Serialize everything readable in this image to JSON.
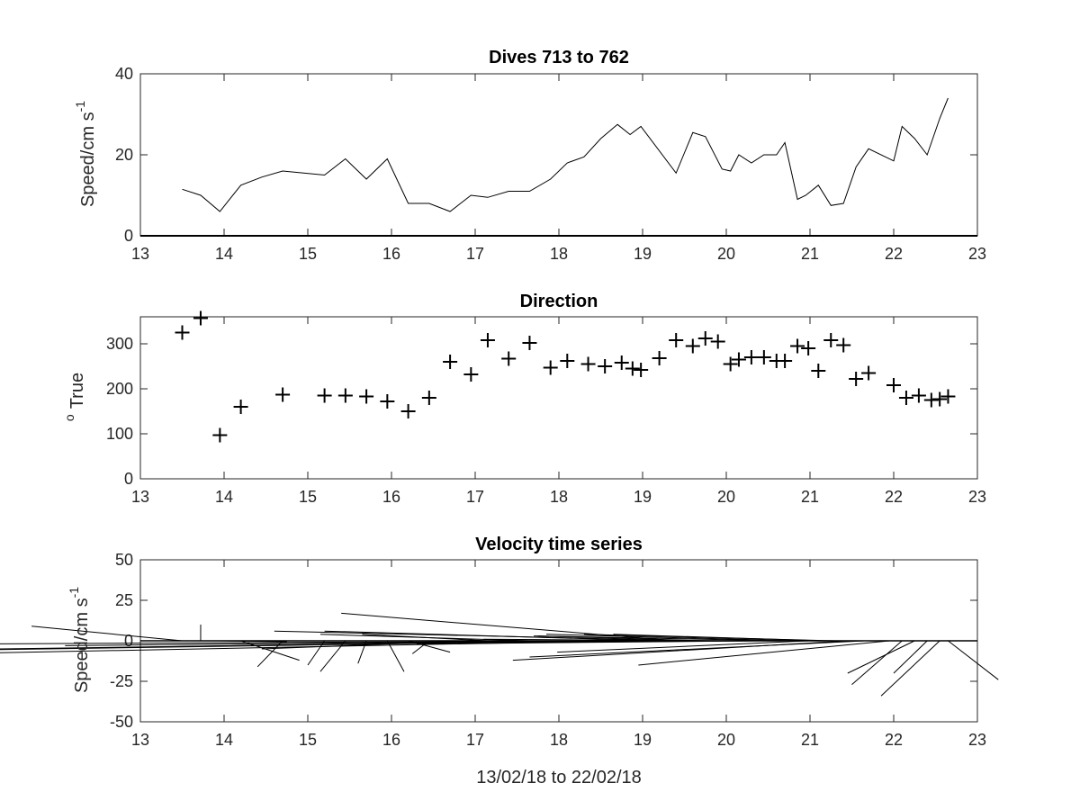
{
  "figure": {
    "xlabel": "13/02/18 to 22/02/18"
  },
  "chart_data": [
    {
      "type": "line",
      "title": "Dives 713 to 762",
      "ylabel": "Speed/cm s",
      "ylabel_superscript": "-1",
      "xlim": [
        13,
        23
      ],
      "ylim": [
        0,
        40
      ],
      "xticks": [
        13,
        14,
        15,
        16,
        17,
        18,
        19,
        20,
        21,
        22,
        23
      ],
      "yticks": [
        0,
        20,
        40
      ],
      "grid": false,
      "series": [
        {
          "x": [
            13.5,
            13.72,
            13.95,
            14.2,
            14.45,
            14.7,
            14.95,
            15.2,
            15.45,
            15.7,
            15.95,
            16.2,
            16.45,
            16.7,
            16.95,
            17.15,
            17.4,
            17.65,
            17.9,
            18.1,
            18.3,
            18.5,
            18.7,
            18.85,
            18.98,
            19.4,
            19.6,
            19.75,
            19.95,
            20.05,
            20.15,
            20.3,
            20.45,
            20.6,
            20.7,
            20.85,
            20.95,
            21.1,
            21.25,
            21.4,
            21.55,
            21.7,
            22.0,
            22.1,
            22.25,
            22.4,
            22.55,
            22.65
          ],
          "y": [
            11.5,
            10,
            6,
            12.5,
            14.5,
            16,
            15.5,
            15,
            19,
            14,
            19,
            8,
            8,
            6,
            10,
            9.5,
            11,
            11,
            14,
            18,
            19.5,
            24,
            27.5,
            25,
            27,
            15.5,
            25.5,
            24.5,
            16.5,
            16,
            20,
            18,
            20,
            20,
            23,
            9,
            10,
            12.5,
            7.5,
            8,
            17,
            21.5,
            18.5,
            27,
            24,
            20,
            29,
            34
          ]
        }
      ]
    },
    {
      "type": "scatter",
      "title": "Direction",
      "ylabel": "True",
      "ylabel_superscript": "o",
      "xlim": [
        13,
        23
      ],
      "ylim": [
        0,
        360
      ],
      "xticks": [
        13,
        14,
        15,
        16,
        17,
        18,
        19,
        20,
        21,
        22,
        23
      ],
      "yticks": [
        0,
        100,
        200,
        300
      ],
      "grid": false,
      "marker": "+",
      "series": [
        {
          "x": [
            13.5,
            13.72,
            13.95,
            14.2,
            14.7,
            15.2,
            15.45,
            15.7,
            15.95,
            16.2,
            16.45,
            16.7,
            16.95,
            17.15,
            17.4,
            17.65,
            17.9,
            18.1,
            18.35,
            18.55,
            18.75,
            18.88,
            18.98,
            19.2,
            19.4,
            19.6,
            19.75,
            19.9,
            20.05,
            20.15,
            20.3,
            20.45,
            20.6,
            20.7,
            20.85,
            20.98,
            21.1,
            21.25,
            21.4,
            21.55,
            21.7,
            22.0,
            22.15,
            22.3,
            22.45,
            22.55,
            22.65
          ],
          "y": [
            325,
            357,
            97,
            160,
            187,
            185,
            185,
            183,
            172,
            150,
            180,
            260,
            232,
            308,
            267,
            302,
            247,
            262,
            255,
            250,
            258,
            245,
            242,
            268,
            308,
            295,
            312,
            305,
            255,
            265,
            270,
            270,
            262,
            262,
            295,
            290,
            240,
            308,
            297,
            222,
            235,
            208,
            180,
            185,
            175,
            177,
            183
          ]
        }
      ]
    },
    {
      "type": "quiver",
      "title": "Velocity time series",
      "ylabel": "Speed/cm s",
      "ylabel_superscript": "-1",
      "xlabel": "13/02/18 to 22/02/18",
      "xlim": [
        13,
        23
      ],
      "ylim": [
        -50,
        50
      ],
      "xticks": [
        13,
        14,
        15,
        16,
        17,
        18,
        19,
        20,
        21,
        22,
        23
      ],
      "yticks": [
        -50,
        -25,
        0,
        25,
        50
      ],
      "yticklabels": [
        "-50",
        "-25",
        "0",
        "25",
        "50"
      ],
      "grid": false,
      "vectors": [
        {
          "t": 13.5,
          "east": -1.8,
          "north": 9
        },
        {
          "t": 13.72,
          "east": 0,
          "north": 10
        },
        {
          "t": 13.95,
          "east": 0.8,
          "north": -0.5
        },
        {
          "t": 14.2,
          "east": 0.7,
          "north": -12
        },
        {
          "t": 14.7,
          "east": -0.3,
          "north": -16
        },
        {
          "t": 15.2,
          "east": -0.2,
          "north": -15
        },
        {
          "t": 15.45,
          "east": -0.3,
          "north": -19
        },
        {
          "t": 15.7,
          "east": -0.1,
          "north": -14
        },
        {
          "t": 15.95,
          "east": 0.2,
          "north": -19
        },
        {
          "t": 16.2,
          "east": 0.5,
          "north": -7
        },
        {
          "t": 16.45,
          "east": -0.2,
          "north": -8
        },
        {
          "t": 16.7,
          "east": -0.8,
          "north": 0
        },
        {
          "t": 16.95,
          "east": -2.5,
          "north": -5
        },
        {
          "t": 17.15,
          "east": -1.5,
          "north": 4
        },
        {
          "t": 17.65,
          "east": -2.5,
          "north": 4
        },
        {
          "t": 17.9,
          "east": -5,
          "north": -4
        },
        {
          "t": 18.1,
          "east": -6,
          "north": -3
        },
        {
          "t": 18.3,
          "east": -7,
          "north": -5
        },
        {
          "t": 18.5,
          "east": -8,
          "north": -6
        },
        {
          "t": 18.7,
          "east": -8,
          "north": -8
        },
        {
          "t": 18.88,
          "east": -8,
          "north": -2
        },
        {
          "t": 18.98,
          "east": -4,
          "north": 0
        },
        {
          "t": 19.2,
          "east": -4,
          "north": 6
        },
        {
          "t": 19.4,
          "east": -4,
          "north": 17
        },
        {
          "t": 19.6,
          "east": -5,
          "north": 6
        },
        {
          "t": 19.75,
          "east": -2,
          "north": 3
        },
        {
          "t": 19.95,
          "east": -2,
          "north": -1
        },
        {
          "t": 20.1,
          "east": -3,
          "north": 1
        },
        {
          "t": 20.3,
          "east": -4,
          "north": -2
        },
        {
          "t": 20.45,
          "east": -3,
          "north": -1
        },
        {
          "t": 20.7,
          "east": -3,
          "north": 3
        },
        {
          "t": 20.85,
          "east": -3,
          "north": 4
        },
        {
          "t": 20.98,
          "east": -3,
          "north": -7
        },
        {
          "t": 21.15,
          "east": -2.5,
          "north": 4
        },
        {
          "t": 21.3,
          "east": -3,
          "north": 4
        },
        {
          "t": 21.45,
          "east": -4,
          "north": -12
        },
        {
          "t": 21.65,
          "east": -4,
          "north": -10
        },
        {
          "t": 21.95,
          "east": -3,
          "north": -15
        },
        {
          "t": 22.1,
          "east": -0.6,
          "north": -27
        },
        {
          "t": 22.25,
          "east": -0.8,
          "north": -20
        },
        {
          "t": 22.4,
          "east": -0.4,
          "north": -20
        },
        {
          "t": 22.55,
          "east": -0.7,
          "north": -34
        },
        {
          "t": 22.65,
          "east": 0.6,
          "north": -24
        }
      ]
    }
  ]
}
